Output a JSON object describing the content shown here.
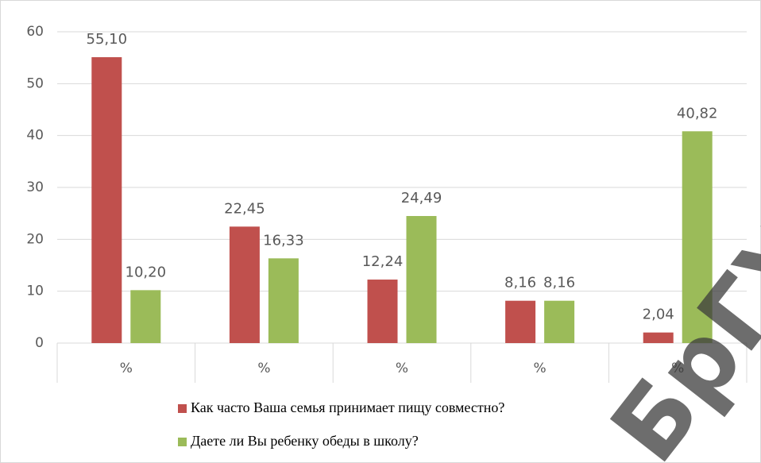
{
  "chart_data": {
    "type": "bar",
    "categories": [
      "%",
      "%",
      "%",
      "%",
      "%"
    ],
    "series": [
      {
        "name": "Как часто Ваша семья принимает пищу совместно?",
        "color": "#c0504d",
        "values": [
          55.1,
          22.45,
          12.24,
          8.16,
          2.04
        ],
        "value_labels": [
          "55,10",
          "22,45",
          "12,24",
          "8,16",
          "2,04"
        ]
      },
      {
        "name": "Даете ли Вы ребенку обеды в школу?",
        "color": "#9bbb59",
        "values": [
          10.2,
          16.33,
          24.49,
          8.16,
          40.82
        ],
        "value_labels": [
          "10,20",
          "16,33",
          "24,49",
          "8,16",
          "40,82"
        ]
      }
    ],
    "ylim": [
      0,
      60
    ],
    "yticks": [
      0,
      10,
      20,
      30,
      40,
      50,
      60
    ],
    "grid": true,
    "legend": "bottom",
    "watermark": "БрГУ"
  }
}
